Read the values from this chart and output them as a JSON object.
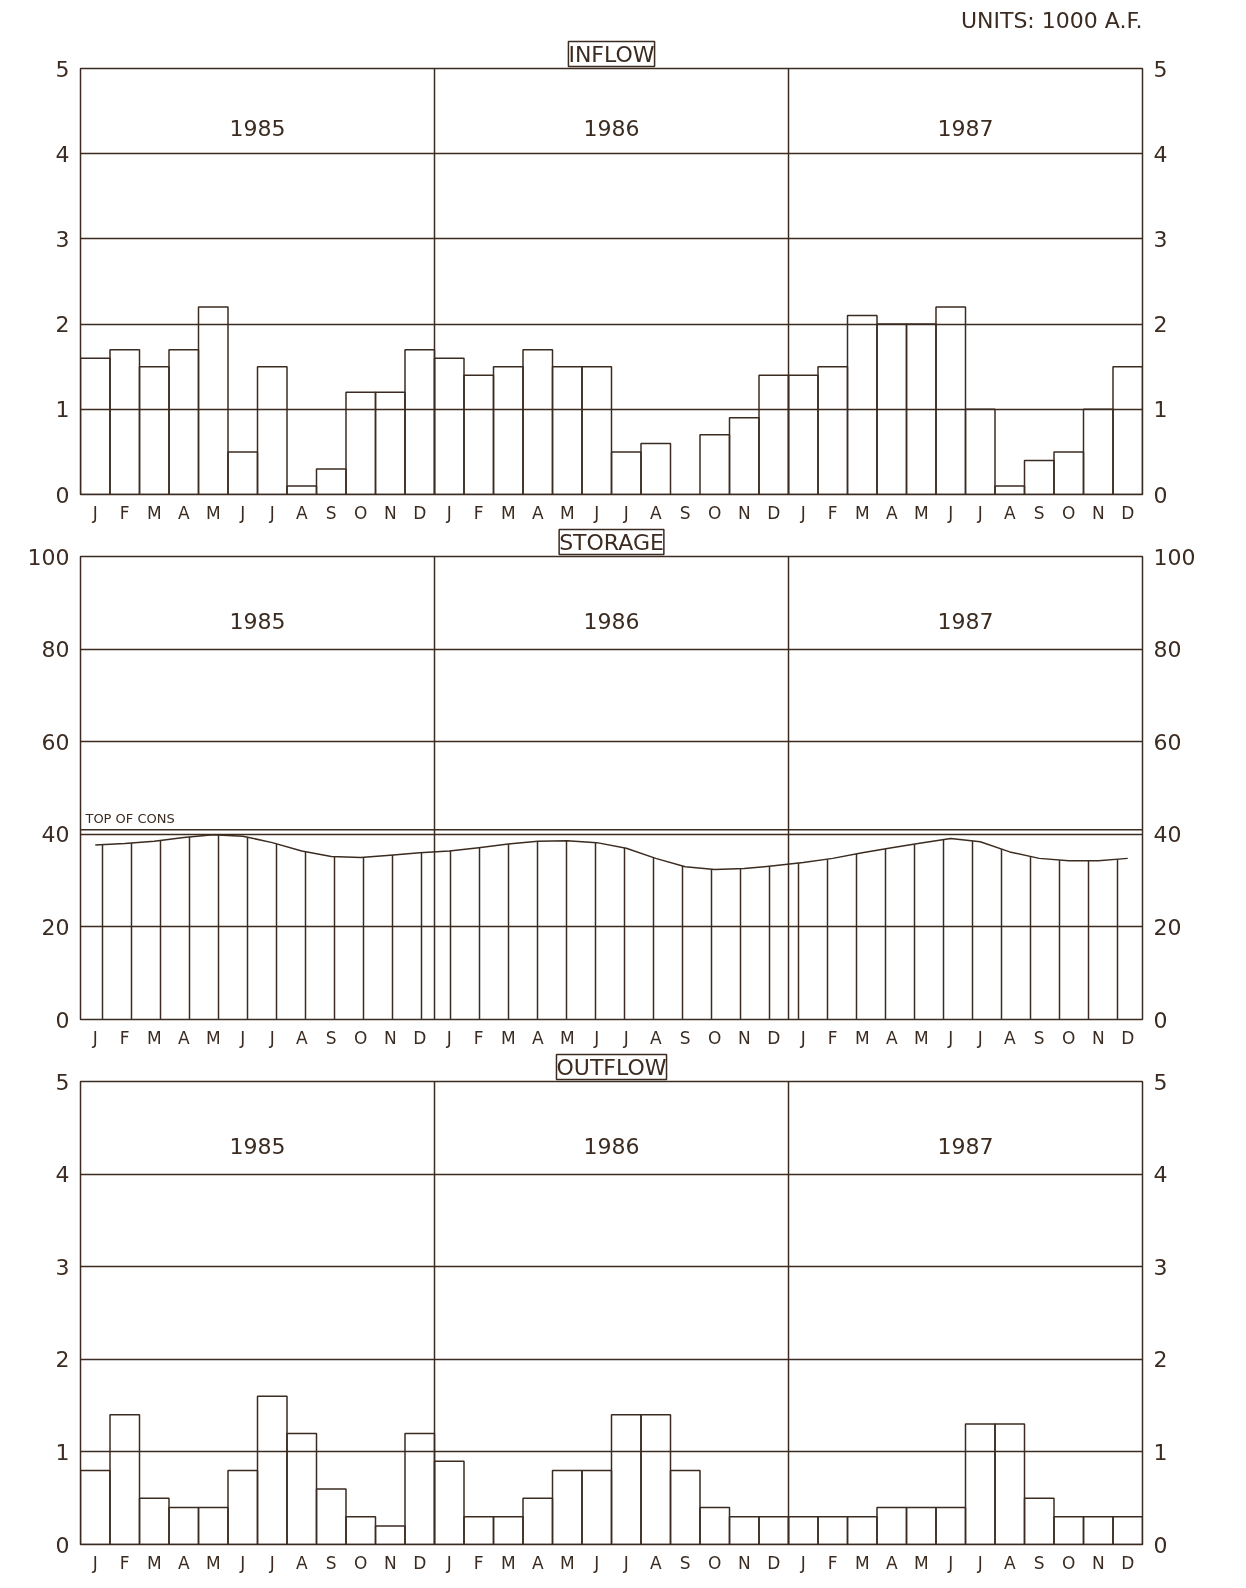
{
  "chart_data": [
    {
      "type": "bar",
      "title": "INFLOW",
      "subtitle": "UNITS: 1000 A.F.",
      "annotations": [
        "1985",
        "1986",
        "1987"
      ],
      "categories": [
        "J",
        "F",
        "M",
        "A",
        "M",
        "J",
        "J",
        "A",
        "S",
        "O",
        "N",
        "D",
        "J",
        "F",
        "M",
        "A",
        "M",
        "J",
        "J",
        "A",
        "S",
        "O",
        "N",
        "D",
        "J",
        "F",
        "M",
        "A",
        "M",
        "J",
        "J",
        "A",
        "S",
        "O",
        "N",
        "D"
      ],
      "series": [
        {
          "color": "#3b2b20",
          "values": [
            1.6,
            1.7,
            1.5,
            1.7,
            2.2,
            0.5,
            1.5,
            0.1,
            0.3,
            1.2,
            1.2,
            1.7,
            1.6,
            1.4,
            1.5,
            1.7,
            1.5,
            1.5,
            0.5,
            0.6,
            0,
            0.7,
            0.9,
            1.4,
            1.4,
            1.5,
            2.1,
            2.0,
            2.0,
            2.2,
            1.0,
            0.1,
            0.4,
            0.5,
            1.0,
            1.5
          ]
        }
      ],
      "ylim": [
        0,
        5
      ],
      "yticks": [
        0,
        1,
        2,
        3,
        4,
        5
      ],
      "y2lim": [
        0,
        5
      ],
      "y2ticks": [
        0,
        1,
        2,
        3,
        4,
        5
      ],
      "grid": "y"
    },
    {
      "type": "area",
      "title": "STORAGE",
      "annotations": [
        "1985",
        "1986",
        "1987"
      ],
      "categories": [
        "J",
        "F",
        "M",
        "A",
        "M",
        "J",
        "J",
        "A",
        "S",
        "O",
        "N",
        "D",
        "J",
        "F",
        "M",
        "A",
        "M",
        "J",
        "J",
        "A",
        "S",
        "O",
        "N",
        "D",
        "J",
        "F",
        "M",
        "A",
        "M",
        "J",
        "J",
        "A",
        "S",
        "O",
        "N",
        "D"
      ],
      "series": [
        {
          "color": "#3b2b20",
          "values": [
            37.7,
            38.0,
            38.5,
            39.3,
            39.9,
            39.6,
            38.2,
            36.4,
            35.2,
            35.0,
            35.5,
            36.0,
            36.4,
            37.1,
            37.9,
            38.5,
            38.6,
            38.2,
            37.0,
            34.8,
            33.0,
            32.4,
            32.6,
            33.2,
            33.9,
            34.8,
            36.0,
            37.1,
            38.1,
            39.1,
            38.4,
            36.2,
            34.8,
            34.3,
            34.3,
            34.8
          ]
        }
      ],
      "ref_lines": [
        {
          "axis": "y",
          "value": 41,
          "label": "TOP OF CONS"
        }
      ],
      "ylim": [
        0,
        100
      ],
      "yticks": [
        0,
        20,
        40,
        60,
        80,
        100
      ],
      "y2lim": [
        0,
        100
      ],
      "y2ticks": [
        0,
        20,
        40,
        60,
        80,
        100
      ],
      "grid": "y"
    },
    {
      "type": "bar",
      "title": "OUTFLOW",
      "annotations": [
        "1985",
        "1986",
        "1987"
      ],
      "categories": [
        "J",
        "F",
        "M",
        "A",
        "M",
        "J",
        "J",
        "A",
        "S",
        "O",
        "N",
        "D",
        "J",
        "F",
        "M",
        "A",
        "M",
        "J",
        "J",
        "A",
        "S",
        "O",
        "N",
        "D",
        "J",
        "F",
        "M",
        "A",
        "M",
        "J",
        "J",
        "A",
        "S",
        "O",
        "N",
        "D"
      ],
      "series": [
        {
          "color": "#3b2b20",
          "values": [
            0.8,
            1.4,
            0.5,
            0.4,
            0.4,
            0.8,
            1.6,
            1.2,
            0.6,
            0.3,
            0.2,
            1.2,
            0.9,
            0.3,
            0.3,
            0.5,
            0.8,
            0.8,
            1.4,
            1.4,
            0.8,
            0.4,
            0.3,
            0.3,
            0.3,
            0.3,
            0.3,
            0.4,
            0.4,
            0.4,
            1.3,
            1.3,
            0.5,
            0.3,
            0.3,
            0.3
          ]
        }
      ],
      "ylim": [
        0,
        5
      ],
      "yticks": [
        0,
        1,
        2,
        3,
        4,
        5
      ],
      "y2lim": [
        0,
        5
      ],
      "y2ticks": [
        0,
        1,
        2,
        3,
        4,
        5
      ],
      "grid": "y"
    }
  ]
}
